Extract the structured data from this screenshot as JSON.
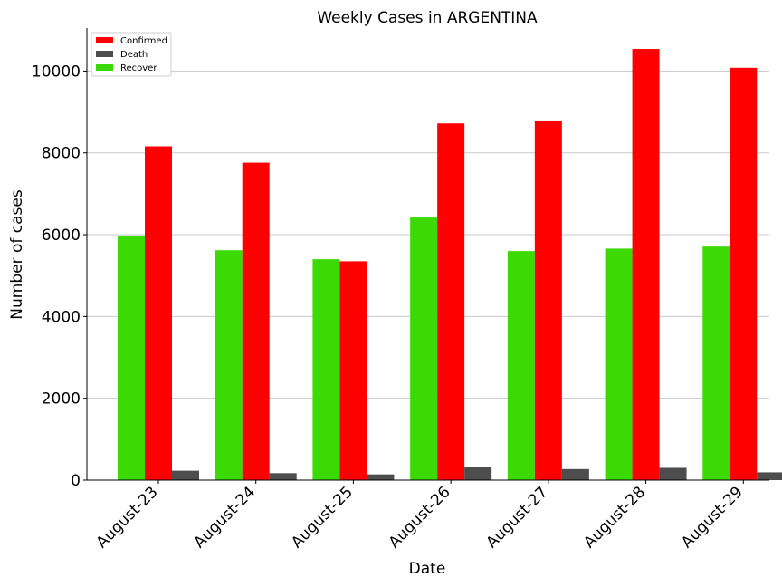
{
  "chart_data": {
    "type": "bar",
    "title": "Weekly Cases in ARGENTINA",
    "xlabel": "Date",
    "ylabel": "Number of cases",
    "categories": [
      "August-23",
      "August-24",
      "August-25",
      "August-26",
      "August-27",
      "August-28",
      "August-29"
    ],
    "series": [
      {
        "name": "Recover",
        "color": "#3cd904",
        "values": [
          5980,
          5620,
          5400,
          6420,
          5600,
          5660,
          5710
        ]
      },
      {
        "name": "Confirmed",
        "color": "#ff0000",
        "values": [
          8160,
          7760,
          5350,
          8720,
          8770,
          10540,
          10080
        ]
      },
      {
        "name": "Death",
        "color": "#4d4d4d",
        "values": [
          230,
          170,
          140,
          320,
          270,
          300,
          190
        ]
      }
    ],
    "legend_order": [
      "Confirmed",
      "Death",
      "Recover"
    ],
    "legend_position": "top-left",
    "ylim": [
      0,
      11050
    ],
    "yticks": [
      0,
      2000,
      4000,
      6000,
      8000,
      10000
    ],
    "grid": "horizontal"
  }
}
